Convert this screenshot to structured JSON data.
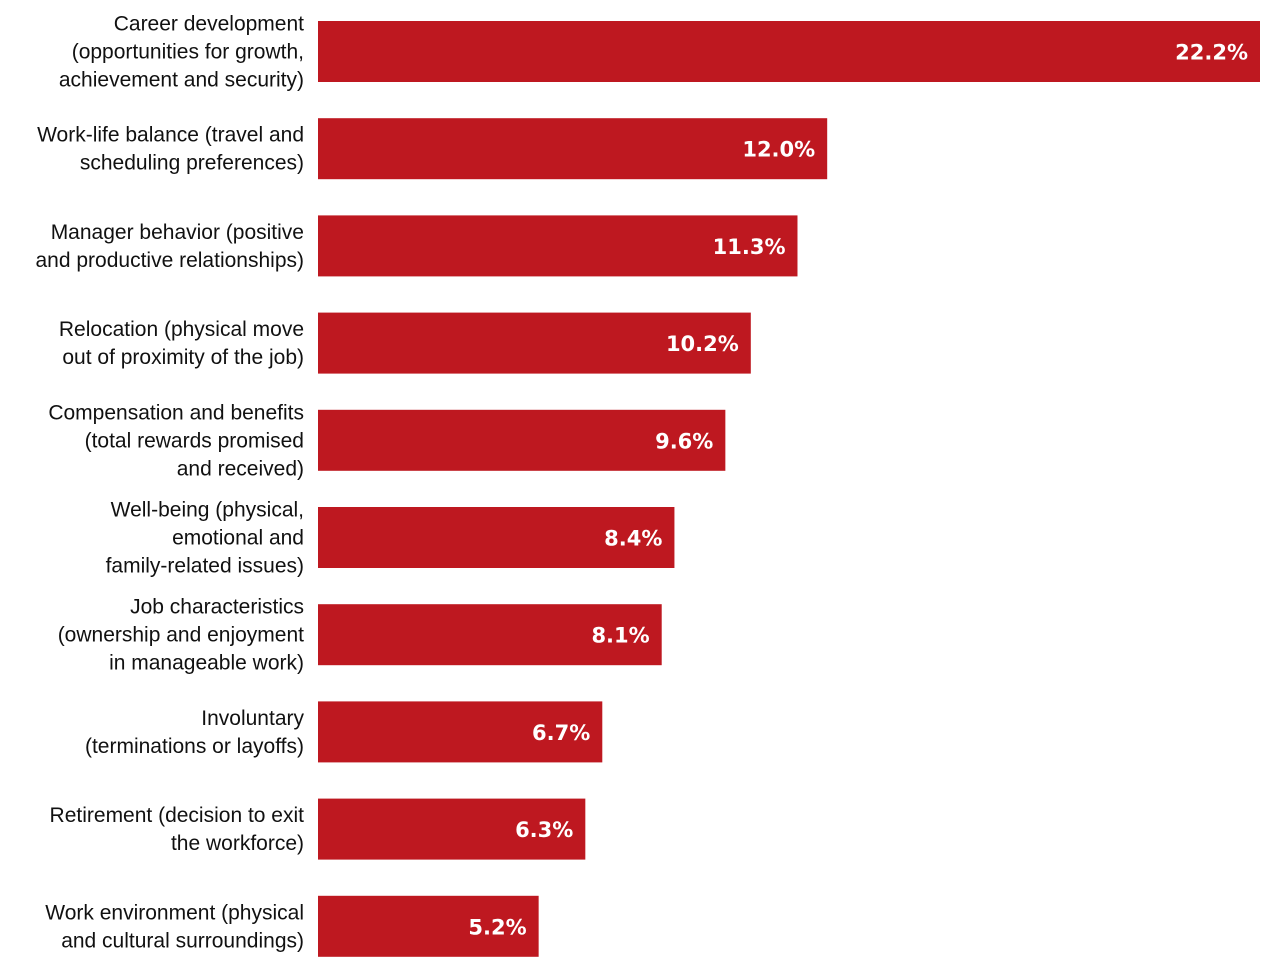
{
  "chart_data": {
    "type": "bar",
    "orientation": "horizontal",
    "title": "",
    "xlabel": "",
    "ylabel": "",
    "xlim": [
      0,
      22.2
    ],
    "grid": false,
    "legend": "none",
    "bar_color": "#BE1820",
    "value_label_color": "#FFFFFF",
    "value_suffix": "%",
    "categories": [
      [
        "Career development",
        "(opportunities for growth,",
        "achievement and security)"
      ],
      [
        "Work-life balance (travel and",
        "scheduling preferences)"
      ],
      [
        "Manager behavior (positive",
        "and productive relationships)"
      ],
      [
        "Relocation (physical move",
        "out of proximity of the job)"
      ],
      [
        "Compensation and benefits",
        "(total rewards promised",
        "and received)"
      ],
      [
        "Well-being (physical,",
        "emotional and",
        "family-related issues)"
      ],
      [
        "Job characteristics",
        "(ownership and enjoyment",
        "in manageable work)"
      ],
      [
        "Involuntary",
        "(terminations or layoffs)"
      ],
      [
        "Retirement (decision to exit",
        "the workforce)"
      ],
      [
        "Work environment (physical",
        "and cultural surroundings)"
      ]
    ],
    "values": [
      22.2,
      12.0,
      11.3,
      10.2,
      9.6,
      8.4,
      8.1,
      6.7,
      6.3,
      5.2
    ],
    "value_labels": [
      "22.2%",
      "12.0%",
      "11.3%",
      "10.2%",
      "9.6%",
      "8.4%",
      "8.1%",
      "6.7%",
      "6.3%",
      "5.2%"
    ]
  }
}
